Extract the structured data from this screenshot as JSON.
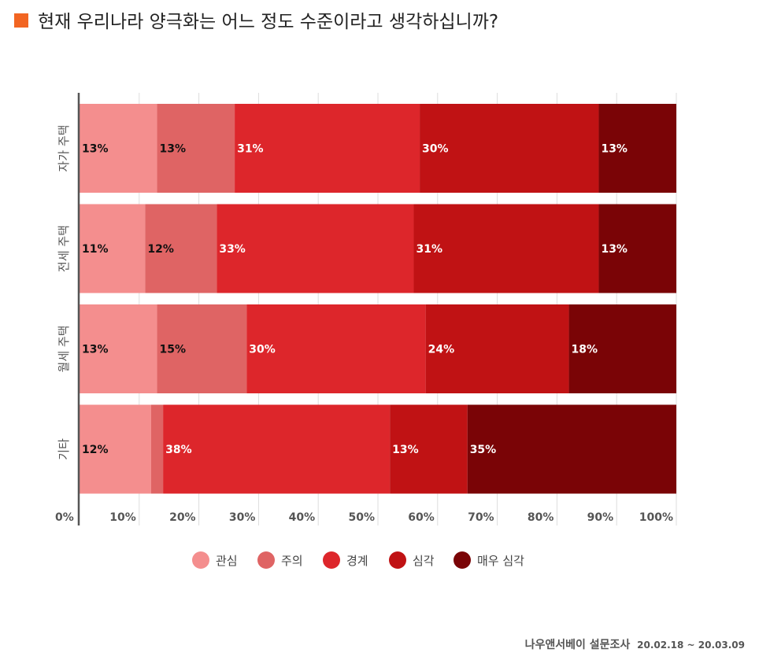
{
  "title": "현재 우리나라 양극화는 어느 정도 수준이라고 생각하십니까?",
  "accent_color": "#f26522",
  "source": {
    "label": "나우앤서베이 설문조사",
    "dates": "20.02.18 ~ 20.03.09"
  },
  "chart_data": {
    "type": "bar",
    "orientation": "horizontal",
    "stacked": true,
    "categories": [
      "자가 주택",
      "전세 주택",
      "월세 주택",
      "기타"
    ],
    "series": [
      {
        "name": "관심",
        "color": "#f48e8e",
        "label_color": "#111111",
        "values": [
          13,
          11,
          13,
          12
        ],
        "labels": [
          "13%",
          "11%",
          "13%",
          "12%"
        ]
      },
      {
        "name": "주의",
        "color": "#df6464",
        "label_color": "#111111",
        "values": [
          13,
          12,
          15,
          2
        ],
        "labels": [
          "13%",
          "12%",
          "15%",
          ""
        ]
      },
      {
        "name": "경계",
        "color": "#dd262b",
        "label_color": "#ffffff",
        "values": [
          31,
          33,
          30,
          38
        ],
        "labels": [
          "31%",
          "33%",
          "30%",
          "38%"
        ]
      },
      {
        "name": "심각",
        "color": "#c01214",
        "label_color": "#ffffff",
        "values": [
          30,
          31,
          24,
          13
        ],
        "labels": [
          "30%",
          "31%",
          "24%",
          "13%"
        ]
      },
      {
        "name": "매우 심각",
        "color": "#7a0406",
        "label_color": "#ffffff",
        "values": [
          13,
          13,
          18,
          35
        ],
        "labels": [
          "13%",
          "13%",
          "18%",
          "35%"
        ]
      }
    ],
    "xlim": [
      0,
      100
    ],
    "xticks": [
      "0%",
      "10%",
      "20%",
      "30%",
      "40%",
      "50%",
      "60%",
      "70%",
      "80%",
      "90%",
      "100%"
    ],
    "grid": true,
    "legend_position": "bottom"
  }
}
